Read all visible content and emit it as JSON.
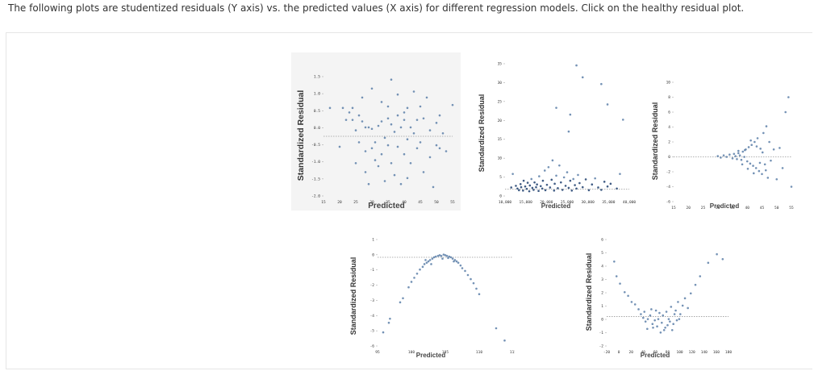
{
  "question": "The following plots are studentized residuals (Y axis) vs. the predicted values (X axis) for  different regression models. Click on the healthy residual plot.",
  "chart_data": [
    {
      "type": "scatter",
      "xlabel": "Predicted",
      "ylabel": "Standardized Residual",
      "xticks": [
        "15",
        "20",
        "25",
        "30",
        "35",
        "40",
        "45",
        "50",
        "55"
      ],
      "yticks": [
        "1.5",
        "1.0",
        "0.5",
        "0.0",
        "-0.5",
        "-1.0",
        "-1.5",
        "-2.0"
      ],
      "xlim": [
        15,
        55
      ],
      "ylim": [
        -2.0,
        2.0
      ],
      "reference_line_y": 0,
      "points": [
        [
          17,
          0.95
        ],
        [
          20,
          -0.35
        ],
        [
          21,
          0.95
        ],
        [
          22,
          0.55
        ],
        [
          23,
          0.8
        ],
        [
          24,
          0.55
        ],
        [
          24,
          0.95
        ],
        [
          25,
          0.2
        ],
        [
          25,
          -0.9
        ],
        [
          26,
          0.7
        ],
        [
          26,
          -0.2
        ],
        [
          27,
          0.5
        ],
        [
          27,
          1.3
        ],
        [
          28,
          0.3
        ],
        [
          28,
          -0.5
        ],
        [
          28,
          -1.2
        ],
        [
          29,
          0.3
        ],
        [
          29,
          -1.6
        ],
        [
          30,
          0.25
        ],
        [
          30,
          -0.4
        ],
        [
          30,
          1.6
        ],
        [
          31,
          -0.2
        ],
        [
          31,
          -0.8
        ],
        [
          32,
          0.35
        ],
        [
          32,
          -1.0
        ],
        [
          33,
          0.5
        ],
        [
          33,
          1.15
        ],
        [
          33,
          -0.6
        ],
        [
          34,
          -0.05
        ],
        [
          34,
          -1.5
        ],
        [
          35,
          0.6
        ],
        [
          35,
          -0.3
        ],
        [
          35,
          1.0
        ],
        [
          36,
          0.4
        ],
        [
          36,
          -0.9
        ],
        [
          36,
          1.9
        ],
        [
          37,
          0.15
        ],
        [
          37,
          -1.3
        ],
        [
          38,
          -0.35
        ],
        [
          38,
          0.7
        ],
        [
          38,
          1.4
        ],
        [
          39,
          0.3
        ],
        [
          39,
          -1.6
        ],
        [
          40,
          0.55
        ],
        [
          40,
          -0.6
        ],
        [
          40,
          0.8
        ],
        [
          41,
          -0.1
        ],
        [
          41,
          0.95
        ],
        [
          41,
          -1.4
        ],
        [
          42,
          0.3
        ],
        [
          42,
          -0.9
        ],
        [
          43,
          1.5
        ],
        [
          43,
          0.1
        ],
        [
          44,
          -0.4
        ],
        [
          44,
          0.55
        ],
        [
          45,
          1.0
        ],
        [
          45,
          -0.2
        ],
        [
          46,
          0.6
        ],
        [
          46,
          -1.2
        ],
        [
          47,
          1.3
        ],
        [
          48,
          0.2
        ],
        [
          48,
          -0.7
        ],
        [
          49,
          -1.7
        ],
        [
          50,
          0.45
        ],
        [
          50,
          -0.3
        ],
        [
          51,
          0.7
        ],
        [
          51,
          -0.4
        ],
        [
          52,
          0.1
        ],
        [
          53,
          -0.5
        ],
        [
          55,
          1.05
        ]
      ]
    },
    {
      "type": "scatter",
      "xlabel": "Predicted",
      "ylabel": "Standardized Residual",
      "xticks": [
        "10,000",
        "15,000",
        "20,000",
        "25,000",
        "30,000",
        "35,000",
        "40,000"
      ],
      "yticks": [
        "35",
        "30",
        "25",
        "20",
        "15",
        "10",
        "5",
        "0"
      ],
      "xlim": [
        5000,
        45000
      ],
      "ylim": [
        -2,
        37
      ],
      "reference_line_y": 0,
      "points": [
        [
          7000,
          0.5
        ],
        [
          7500,
          4.5
        ],
        [
          8500,
          1
        ],
        [
          9000,
          0.2
        ],
        [
          9500,
          -0.3
        ],
        [
          10000,
          1.5
        ],
        [
          10200,
          0.6
        ],
        [
          10800,
          -0.4
        ],
        [
          11000,
          2.5
        ],
        [
          11500,
          0.8
        ],
        [
          12000,
          0.1
        ],
        [
          12300,
          1.9
        ],
        [
          12800,
          -0.6
        ],
        [
          13000,
          1.1
        ],
        [
          13500,
          3.0
        ],
        [
          13800,
          0.4
        ],
        [
          14200,
          -0.2
        ],
        [
          14500,
          2.0
        ],
        [
          15000,
          0.6
        ],
        [
          15300,
          1.4
        ],
        [
          15800,
          -0.5
        ],
        [
          16000,
          3.8
        ],
        [
          16500,
          0.9
        ],
        [
          17000,
          0.2
        ],
        [
          17200,
          2.5
        ],
        [
          17800,
          5.5
        ],
        [
          18000,
          -0.3
        ],
        [
          18500,
          1.3
        ],
        [
          19000,
          6.5
        ],
        [
          19500,
          0.5
        ],
        [
          20000,
          2.8
        ],
        [
          20300,
          8.5
        ],
        [
          20800,
          -0.4
        ],
        [
          21000,
          1.6
        ],
        [
          21500,
          4.0
        ],
        [
          22000,
          0.3
        ],
        [
          22500,
          7.0
        ],
        [
          23000,
          2.0
        ],
        [
          23500,
          -0.2
        ],
        [
          24000,
          3.5
        ],
        [
          24500,
          1.0
        ],
        [
          25000,
          5.0
        ],
        [
          25500,
          0.4
        ],
        [
          26000,
          2.5
        ],
        [
          26500,
          -0.4
        ],
        [
          27000,
          3.0
        ],
        [
          27500,
          1.2
        ],
        [
          28000,
          0.2
        ],
        [
          28500,
          4.2
        ],
        [
          29000,
          1.8
        ],
        [
          30000,
          0.6
        ],
        [
          31000,
          2.9
        ],
        [
          32000,
          -0.3
        ],
        [
          33000,
          1.4
        ],
        [
          34000,
          3.2
        ],
        [
          35000,
          0.5
        ],
        [
          36000,
          -0.2
        ],
        [
          37000,
          2.2
        ],
        [
          38000,
          0.8
        ],
        [
          39000,
          1.6
        ],
        [
          41000,
          0.2
        ],
        [
          42000,
          4.5
        ],
        [
          21500,
          24.0
        ],
        [
          25500,
          17.0
        ],
        [
          28000,
          36.5
        ],
        [
          30000,
          33.0
        ],
        [
          36000,
          31.0
        ],
        [
          38000,
          25.0
        ],
        [
          26000,
          22.0
        ],
        [
          43000,
          20.5
        ]
      ]
    },
    {
      "type": "scatter",
      "xlabel": "Predicted",
      "ylabel": "Standardized Residual",
      "xticks": [
        "15",
        "20",
        "25",
        "30",
        "35",
        "40",
        "45",
        "50",
        "55"
      ],
      "yticks": [
        "10",
        "8",
        "6",
        "4",
        "2",
        "0",
        "-2",
        "-4",
        "-6"
      ],
      "xlim": [
        15,
        55
      ],
      "ylim": [
        -6,
        10
      ],
      "reference_line_y": 0,
      "points": [
        [
          30,
          0.1
        ],
        [
          31,
          -0.1
        ],
        [
          32,
          0.2
        ],
        [
          33,
          0.0
        ],
        [
          34,
          0.3
        ],
        [
          35,
          -0.2
        ],
        [
          35.5,
          0.4
        ],
        [
          36,
          0.1
        ],
        [
          36.5,
          -0.3
        ],
        [
          37,
          0.5
        ],
        [
          37.5,
          0.2
        ],
        [
          38,
          -0.4
        ],
        [
          38.5,
          0.7
        ],
        [
          39,
          0.0
        ],
        [
          39.5,
          1.0
        ],
        [
          40,
          -0.6
        ],
        [
          40.5,
          1.3
        ],
        [
          41,
          -0.9
        ],
        [
          41.5,
          1.6
        ],
        [
          42,
          -1.2
        ],
        [
          42.5,
          2.0
        ],
        [
          43,
          -1.5
        ],
        [
          43.5,
          2.5
        ],
        [
          44,
          -1.9
        ],
        [
          44.5,
          1.1
        ],
        [
          45,
          -2.3
        ],
        [
          45.5,
          3.2
        ],
        [
          46,
          -1.0
        ],
        [
          46.5,
          4.1
        ],
        [
          47,
          -2.8
        ],
        [
          47.5,
          2.0
        ],
        [
          48,
          -0.5
        ],
        [
          49,
          1.0
        ],
        [
          50,
          -3.0
        ],
        [
          51,
          1.2
        ],
        [
          52,
          -1.5
        ],
        [
          53,
          6.0
        ],
        [
          54,
          8.0
        ],
        [
          55,
          -4.0
        ],
        [
          37,
          0.8
        ],
        [
          38.3,
          -1.0
        ],
        [
          39.2,
          0.9
        ],
        [
          40.2,
          -1.6
        ],
        [
          41.2,
          2.2
        ],
        [
          42.2,
          -2.2
        ],
        [
          43.2,
          1.4
        ],
        [
          44.3,
          -0.8
        ],
        [
          45.2,
          0.6
        ],
        [
          46.3,
          -1.8
        ]
      ]
    },
    {
      "type": "scatter",
      "xlabel": "Predicted",
      "ylabel": "Standardized Residual",
      "xticks": [
        "95",
        "100",
        "105",
        "110",
        "115"
      ],
      "yticks": [
        "1",
        "0",
        "-1",
        "-2",
        "-3",
        "-4",
        "-5",
        "-6"
      ],
      "xlim": [
        92,
        116
      ],
      "ylim": [
        -6.5,
        1.3
      ],
      "reference_line_y": 0,
      "points": [
        [
          93,
          -5.5
        ],
        [
          94,
          -4.8
        ],
        [
          94.2,
          -4.5
        ],
        [
          96,
          -3.3
        ],
        [
          96.5,
          -3.0
        ],
        [
          97.5,
          -2.2
        ],
        [
          98,
          -1.8
        ],
        [
          98.5,
          -1.5
        ],
        [
          99,
          -1.2
        ],
        [
          99.5,
          -0.9
        ],
        [
          100,
          -0.7
        ],
        [
          100.3,
          -0.5
        ],
        [
          100.7,
          -0.4
        ],
        [
          101,
          -0.3
        ],
        [
          101.3,
          -0.2
        ],
        [
          101.7,
          -0.1
        ],
        [
          102,
          0.0
        ],
        [
          102.3,
          0.05
        ],
        [
          102.7,
          0.1
        ],
        [
          103,
          0.15
        ],
        [
          103.3,
          0.1
        ],
        [
          103.7,
          0.2
        ],
        [
          104,
          0.15
        ],
        [
          104.3,
          0.1
        ],
        [
          104.7,
          0.05
        ],
        [
          105,
          0.0
        ],
        [
          105.3,
          -0.1
        ],
        [
          105.7,
          -0.2
        ],
        [
          106,
          -0.3
        ],
        [
          106.3,
          -0.4
        ],
        [
          106.7,
          -0.6
        ],
        [
          107,
          -0.8
        ],
        [
          107.5,
          -1.0
        ],
        [
          108,
          -1.3
        ],
        [
          108.5,
          -1.6
        ],
        [
          109,
          -1.9
        ],
        [
          109.5,
          -2.3
        ],
        [
          110,
          -2.7
        ],
        [
          113,
          -5.2
        ],
        [
          114.5,
          -6.1
        ],
        [
          101.5,
          -0.5
        ],
        [
          103.5,
          -0.1
        ],
        [
          105.5,
          -0.3
        ],
        [
          100.5,
          -0.2
        ],
        [
          104.5,
          -0.05
        ]
      ]
    },
    {
      "type": "scatter",
      "xlabel": "Predicted",
      "ylabel": "Standardized Residual",
      "xticks": [
        "-20",
        "0",
        "20",
        "40",
        "60",
        "80",
        "100",
        "120",
        "140",
        "160",
        "180"
      ],
      "yticks": [
        "6",
        "5",
        "4",
        "3",
        "2",
        "1",
        "0",
        "-1",
        "-2"
      ],
      "xlim": [
        -25,
        185
      ],
      "ylim": [
        -2.4,
        6.3
      ],
      "reference_line_y": 0,
      "points": [
        [
          -12,
          4.5
        ],
        [
          -8,
          3.3
        ],
        [
          -2,
          2.7
        ],
        [
          6,
          2.0
        ],
        [
          12,
          1.7
        ],
        [
          18,
          1.2
        ],
        [
          24,
          1.0
        ],
        [
          30,
          0.6
        ],
        [
          34,
          0.2
        ],
        [
          38,
          -0.1
        ],
        [
          42,
          -0.4
        ],
        [
          46,
          -0.2
        ],
        [
          50,
          0.1
        ],
        [
          54,
          -0.6
        ],
        [
          58,
          -0.3
        ],
        [
          62,
          -0.8
        ],
        [
          66,
          0.3
        ],
        [
          70,
          -0.5
        ],
        [
          74,
          -1.1
        ],
        [
          78,
          0.4
        ],
        [
          82,
          -0.2
        ],
        [
          86,
          0.8
        ],
        [
          90,
          -0.6
        ],
        [
          94,
          0.5
        ],
        [
          98,
          1.2
        ],
        [
          102,
          0.2
        ],
        [
          106,
          0.9
        ],
        [
          110,
          1.5
        ],
        [
          115,
          0.7
        ],
        [
          120,
          1.9
        ],
        [
          128,
          2.6
        ],
        [
          136,
          3.3
        ],
        [
          150,
          4.4
        ],
        [
          165,
          5.1
        ],
        [
          175,
          4.7
        ],
        [
          45,
          -1.0
        ],
        [
          55,
          -0.9
        ],
        [
          60,
          0.5
        ],
        [
          68,
          -1.3
        ],
        [
          76,
          -0.9
        ],
        [
          84,
          -0.4
        ],
        [
          92,
          0.2
        ],
        [
          100,
          -0.2
        ],
        [
          40,
          0.4
        ],
        [
          52,
          0.6
        ],
        [
          64,
          -0.2
        ],
        [
          72,
          0.1
        ],
        [
          80,
          -0.7
        ],
        [
          88,
          -1.1
        ],
        [
          96,
          -0.3
        ]
      ]
    }
  ]
}
